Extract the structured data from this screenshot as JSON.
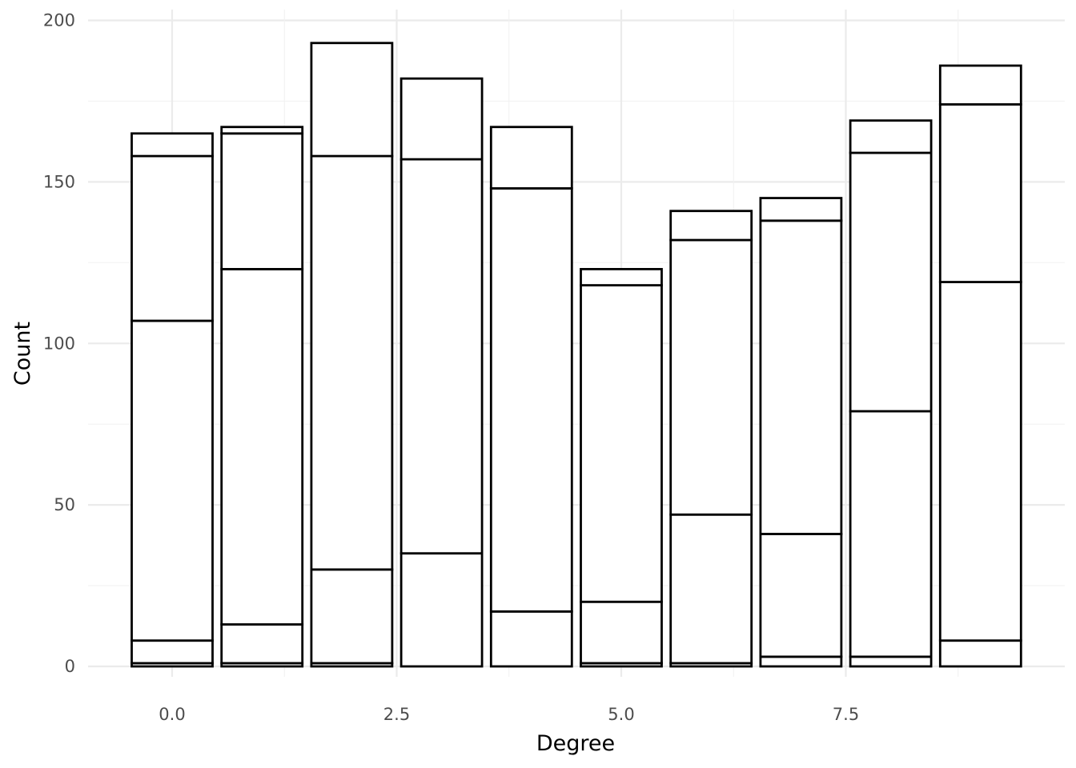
{
  "chart_data": {
    "type": "bar",
    "stacked": true,
    "title": "",
    "xlabel": "Degree",
    "ylabel": "Count",
    "xlim": [
      -0.9,
      9.9
    ],
    "ylim": [
      -7,
      200
    ],
    "x_ticks": [
      0.0,
      2.5,
      5.0,
      7.5
    ],
    "x_tick_labels": [
      "0.0",
      "2.5",
      "5.0",
      "7.5"
    ],
    "y_ticks": [
      0,
      50,
      100,
      150,
      200
    ],
    "y_tick_labels": [
      "0",
      "50",
      "100",
      "150",
      "200"
    ],
    "grid": true,
    "bar_width": 0.9,
    "bar_fill": "#ffffff",
    "bar_outline": "#000000",
    "bars": [
      {
        "x": 0,
        "boundaries": [
          0,
          1,
          8,
          107,
          158,
          165
        ]
      },
      {
        "x": 1,
        "boundaries": [
          0,
          1,
          13,
          123,
          165,
          167
        ]
      },
      {
        "x": 2,
        "boundaries": [
          0,
          1,
          30,
          158,
          193
        ]
      },
      {
        "x": 3,
        "boundaries": [
          0,
          35,
          157,
          182
        ]
      },
      {
        "x": 4,
        "boundaries": [
          0,
          17,
          148,
          167
        ]
      },
      {
        "x": 5,
        "boundaries": [
          0,
          1,
          20,
          118,
          123
        ]
      },
      {
        "x": 6,
        "boundaries": [
          0,
          1,
          47,
          132,
          141
        ]
      },
      {
        "x": 7,
        "boundaries": [
          0,
          3,
          41,
          138,
          145
        ]
      },
      {
        "x": 8,
        "boundaries": [
          0,
          3,
          79,
          159,
          169
        ]
      },
      {
        "x": 9,
        "boundaries": [
          0,
          8,
          119,
          174,
          186
        ]
      }
    ]
  }
}
